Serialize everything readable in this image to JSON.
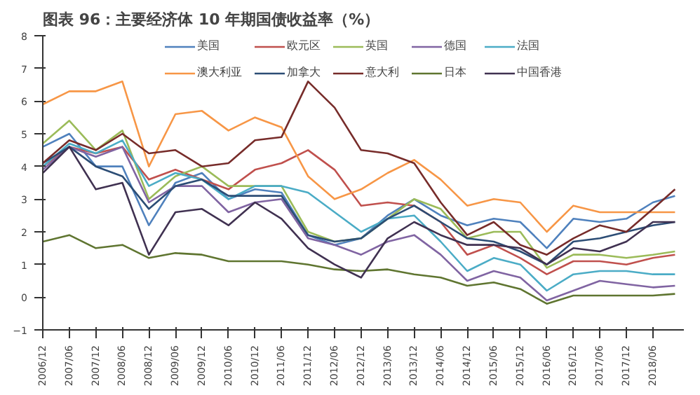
{
  "chart_data": {
    "type": "line",
    "title": "图表 96：主要经济体 10 年期国债收益率（%）",
    "x": [
      "2006-12",
      "2007-06",
      "2007-12",
      "2008-06",
      "2008-12",
      "2009-06",
      "2009-12",
      "2010-06",
      "2010-12",
      "2011-06",
      "2011-12",
      "2012-06",
      "2012-12",
      "2013-06",
      "2013-12",
      "2014-06",
      "2014-12",
      "2015-06",
      "2015-12",
      "2016-06",
      "2016-12",
      "2017-06",
      "2017-12",
      "2018-06",
      "2018-11"
    ],
    "series": [
      {
        "name": "美国",
        "color": "#4f81bd",
        "values": [
          4.6,
          5.0,
          4.0,
          4.0,
          2.2,
          3.5,
          3.8,
          3.0,
          3.3,
          3.2,
          1.9,
          1.6,
          1.8,
          2.5,
          3.0,
          2.5,
          2.2,
          2.4,
          2.3,
          1.5,
          2.4,
          2.3,
          2.4,
          2.9,
          3.1
        ]
      },
      {
        "name": "欧元区",
        "color": "#c0504d",
        "values": [
          4.0,
          4.6,
          4.4,
          4.6,
          3.6,
          3.9,
          3.6,
          3.3,
          3.9,
          4.1,
          4.5,
          3.9,
          2.8,
          2.9,
          2.8,
          2.3,
          1.3,
          1.6,
          1.2,
          0.7,
          1.1,
          1.1,
          1.0,
          1.2,
          1.3
        ]
      },
      {
        "name": "英国",
        "color": "#9bbb59",
        "values": [
          4.7,
          5.4,
          4.5,
          5.1,
          3.0,
          3.7,
          4.0,
          3.4,
          3.4,
          3.4,
          2.0,
          1.7,
          1.8,
          2.4,
          3.0,
          2.7,
          1.8,
          2.0,
          2.0,
          0.9,
          1.3,
          1.3,
          1.2,
          1.3,
          1.4
        ]
      },
      {
        "name": "德国",
        "color": "#8064a2",
        "values": [
          3.9,
          4.6,
          4.3,
          4.6,
          2.9,
          3.4,
          3.4,
          2.6,
          2.9,
          3.0,
          1.8,
          1.6,
          1.3,
          1.7,
          1.9,
          1.3,
          0.5,
          0.8,
          0.6,
          -0.1,
          0.2,
          0.5,
          0.4,
          0.3,
          0.35
        ]
      },
      {
        "name": "法国",
        "color": "#4bacc6",
        "values": [
          4.0,
          4.7,
          4.4,
          4.8,
          3.4,
          3.8,
          3.6,
          3.0,
          3.4,
          3.4,
          3.2,
          2.6,
          2.0,
          2.4,
          2.5,
          1.7,
          0.8,
          1.2,
          1.0,
          0.2,
          0.7,
          0.8,
          0.8,
          0.7,
          0.7
        ]
      },
      {
        "name": "澳大利亚",
        "color": "#f79646",
        "values": [
          5.9,
          6.3,
          6.3,
          6.6,
          4.0,
          5.6,
          5.7,
          5.1,
          5.5,
          5.2,
          3.7,
          3.0,
          3.3,
          3.8,
          4.2,
          3.6,
          2.8,
          3.0,
          2.9,
          2.0,
          2.8,
          2.6,
          2.6,
          2.6,
          2.6
        ]
      },
      {
        "name": "加拿大",
        "color": "#2c4d75",
        "values": [
          4.1,
          4.6,
          4.0,
          3.7,
          2.7,
          3.4,
          3.6,
          3.1,
          3.1,
          3.1,
          1.9,
          1.7,
          1.8,
          2.4,
          2.8,
          2.3,
          1.8,
          1.7,
          1.4,
          1.0,
          1.7,
          1.8,
          2.0,
          2.2,
          2.3
        ]
      },
      {
        "name": "意大利",
        "color": "#772c2a",
        "values": [
          4.1,
          4.8,
          4.5,
          5.0,
          4.4,
          4.5,
          4.0,
          4.1,
          4.8,
          4.9,
          6.6,
          5.8,
          4.5,
          4.4,
          4.1,
          2.9,
          1.9,
          2.3,
          1.6,
          1.3,
          1.8,
          2.2,
          2.0,
          2.7,
          3.3
        ]
      },
      {
        "name": "日本",
        "color": "#5f7530",
        "values": [
          1.7,
          1.9,
          1.5,
          1.6,
          1.2,
          1.35,
          1.3,
          1.1,
          1.1,
          1.1,
          1.0,
          0.85,
          0.8,
          0.85,
          0.7,
          0.6,
          0.35,
          0.45,
          0.25,
          -0.2,
          0.05,
          0.05,
          0.05,
          0.05,
          0.1
        ]
      },
      {
        "name": "中国香港",
        "color": "#403151",
        "values": [
          3.8,
          4.6,
          3.3,
          3.5,
          1.3,
          2.6,
          2.7,
          2.2,
          2.9,
          2.4,
          1.5,
          1.0,
          0.6,
          1.8,
          2.3,
          1.9,
          1.6,
          1.6,
          1.5,
          1.0,
          1.5,
          1.4,
          1.7,
          2.3,
          2.3
        ]
      }
    ],
    "xlim": [
      "2006-12",
      "2019-01"
    ],
    "xticks": [
      {
        "value": "2006-12",
        "label": "2006/12"
      },
      {
        "value": "2007-06",
        "label": "2007/06"
      },
      {
        "value": "2007-12",
        "label": "2007/12"
      },
      {
        "value": "2008-06",
        "label": "2008/06"
      },
      {
        "value": "2008-12",
        "label": "2008/12"
      },
      {
        "value": "2009-06",
        "label": "2009/06"
      },
      {
        "value": "2009-12",
        "label": "2009/12"
      },
      {
        "value": "2010-06",
        "label": "2010/06"
      },
      {
        "value": "2010-12",
        "label": "2010/12"
      },
      {
        "value": "2011-06",
        "label": "2011/06"
      },
      {
        "value": "2011-12",
        "label": "2011/12"
      },
      {
        "value": "2012-06",
        "label": "2012/06"
      },
      {
        "value": "2012-12",
        "label": "2012/12"
      },
      {
        "value": "2013-06",
        "label": "2013/06"
      },
      {
        "value": "2013-12",
        "label": "2013/12"
      },
      {
        "value": "2014-06",
        "label": "2014/06"
      },
      {
        "value": "2014-12",
        "label": "2014/12"
      },
      {
        "value": "2015-06",
        "label": "2015/06"
      },
      {
        "value": "2015-12",
        "label": "2015/12"
      },
      {
        "value": "2016-06",
        "label": "2016/06"
      },
      {
        "value": "2016-12",
        "label": "2016/12"
      },
      {
        "value": "2017-06",
        "label": "2017/06"
      },
      {
        "value": "2017-12",
        "label": "2017/12"
      },
      {
        "value": "2018-06",
        "label": "2018/06"
      }
    ],
    "ylim": [
      -1,
      8
    ],
    "yticks": [
      -1,
      0,
      1,
      2,
      3,
      4,
      5,
      6,
      7,
      8
    ],
    "grid": false,
    "legend": "top",
    "line_style": "solid",
    "marker": "none"
  }
}
